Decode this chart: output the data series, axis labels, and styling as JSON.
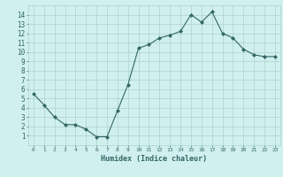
{
  "x": [
    0,
    1,
    2,
    3,
    4,
    5,
    6,
    7,
    8,
    9,
    10,
    11,
    12,
    13,
    14,
    15,
    16,
    17,
    18,
    19,
    20,
    21,
    22,
    23
  ],
  "y": [
    5.5,
    4.3,
    3.0,
    2.2,
    2.2,
    1.7,
    0.9,
    0.9,
    3.7,
    6.5,
    10.4,
    10.8,
    11.5,
    11.8,
    12.2,
    14.0,
    13.2,
    14.3,
    12.0,
    11.5,
    10.3,
    9.7,
    9.5,
    9.5
  ],
  "xlabel": "Humidex (Indice chaleur)",
  "xlim": [
    -0.5,
    23.5
  ],
  "ylim": [
    0,
    15
  ],
  "bg_color": "#cff0ee",
  "grid_color": "#b0d0cc",
  "line_color": "#336666",
  "x_ticks": [
    0,
    1,
    2,
    3,
    4,
    5,
    6,
    7,
    8,
    9,
    10,
    11,
    12,
    13,
    14,
    15,
    16,
    17,
    18,
    19,
    20,
    21,
    22,
    23
  ],
  "y_ticks": [
    1,
    2,
    3,
    4,
    5,
    6,
    7,
    8,
    9,
    10,
    11,
    12,
    13,
    14
  ]
}
